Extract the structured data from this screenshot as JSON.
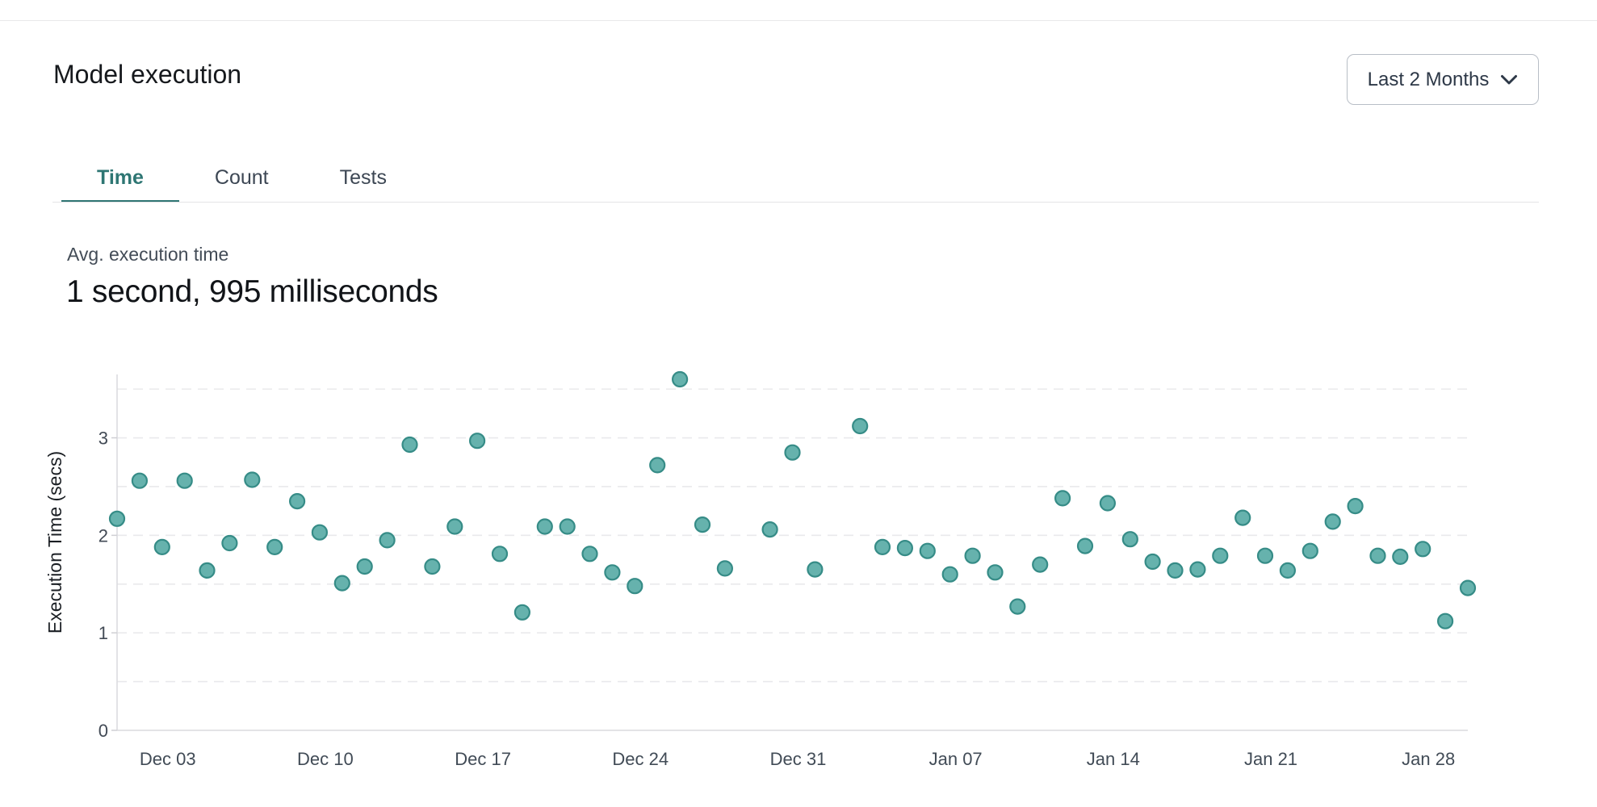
{
  "header": {
    "title": "Model execution",
    "range_selector": {
      "value": "Last 2 Months",
      "icon": "chevron-down"
    }
  },
  "tabs": [
    {
      "label": "Time",
      "active": true
    },
    {
      "label": "Count",
      "active": false
    },
    {
      "label": "Tests",
      "active": false
    }
  ],
  "stat": {
    "label": "Avg. execution time",
    "value": "1 second, 995 milliseconds"
  },
  "chart_data": {
    "type": "scatter",
    "ylabel": "Execution Time (secs)",
    "ylim": [
      0,
      3.65
    ],
    "xlim_days": [
      0,
      60
    ],
    "x_unit": "days from chart start (Dec 01); gaps at Dec 29 and Jan 02",
    "grid": "dashed horizontal every 0.5",
    "y_ticks": [
      0,
      1,
      2,
      3
    ],
    "x_ticks": [
      {
        "day": 2,
        "label": "Dec 03"
      },
      {
        "day": 9,
        "label": "Dec 10"
      },
      {
        "day": 16,
        "label": "Dec 17"
      },
      {
        "day": 23,
        "label": "Dec 24"
      },
      {
        "day": 30,
        "label": "Dec 31"
      },
      {
        "day": 37,
        "label": "Jan 07"
      },
      {
        "day": 44,
        "label": "Jan 14"
      },
      {
        "day": 51,
        "label": "Jan 21"
      },
      {
        "day": 58,
        "label": "Jan 28"
      }
    ],
    "points": [
      [
        0,
        2.17
      ],
      [
        1,
        2.56
      ],
      [
        2,
        1.88
      ],
      [
        3,
        2.56
      ],
      [
        4,
        1.64
      ],
      [
        5,
        1.92
      ],
      [
        6,
        2.57
      ],
      [
        7,
        1.88
      ],
      [
        8,
        2.35
      ],
      [
        9,
        2.03
      ],
      [
        10,
        1.51
      ],
      [
        11,
        1.68
      ],
      [
        12,
        1.95
      ],
      [
        13,
        2.93
      ],
      [
        14,
        1.68
      ],
      [
        15,
        2.09
      ],
      [
        16,
        2.97
      ],
      [
        17,
        1.81
      ],
      [
        18,
        1.21
      ],
      [
        19,
        2.09
      ],
      [
        20,
        2.09
      ],
      [
        21,
        1.81
      ],
      [
        22,
        1.62
      ],
      [
        23,
        1.48
      ],
      [
        24,
        2.72
      ],
      [
        25,
        3.6
      ],
      [
        26,
        2.11
      ],
      [
        27,
        1.66
      ],
      [
        29,
        2.06
      ],
      [
        30,
        2.85
      ],
      [
        31,
        1.65
      ],
      [
        33,
        3.12
      ],
      [
        34,
        1.88
      ],
      [
        35,
        1.87
      ],
      [
        36,
        1.84
      ],
      [
        37,
        1.6
      ],
      [
        38,
        1.79
      ],
      [
        39,
        1.62
      ],
      [
        40,
        1.27
      ],
      [
        41,
        1.7
      ],
      [
        42,
        2.38
      ],
      [
        43,
        1.89
      ],
      [
        44,
        2.33
      ],
      [
        45,
        1.96
      ],
      [
        46,
        1.73
      ],
      [
        47,
        1.64
      ],
      [
        48,
        1.65
      ],
      [
        49,
        1.79
      ],
      [
        50,
        2.18
      ],
      [
        51,
        1.79
      ],
      [
        52,
        1.64
      ],
      [
        53,
        1.84
      ],
      [
        54,
        2.14
      ],
      [
        55,
        2.3
      ],
      [
        56,
        1.79
      ],
      [
        57,
        1.78
      ],
      [
        58,
        1.86
      ],
      [
        59,
        1.12
      ],
      [
        60,
        1.46
      ]
    ],
    "colors": {
      "point_fill": "#66b2ad",
      "point_stroke": "#368c87",
      "grid_line": "#e9e9ec",
      "axis_line": "#dadade",
      "accent_teal": "#2f7573"
    },
    "legend": "none"
  }
}
